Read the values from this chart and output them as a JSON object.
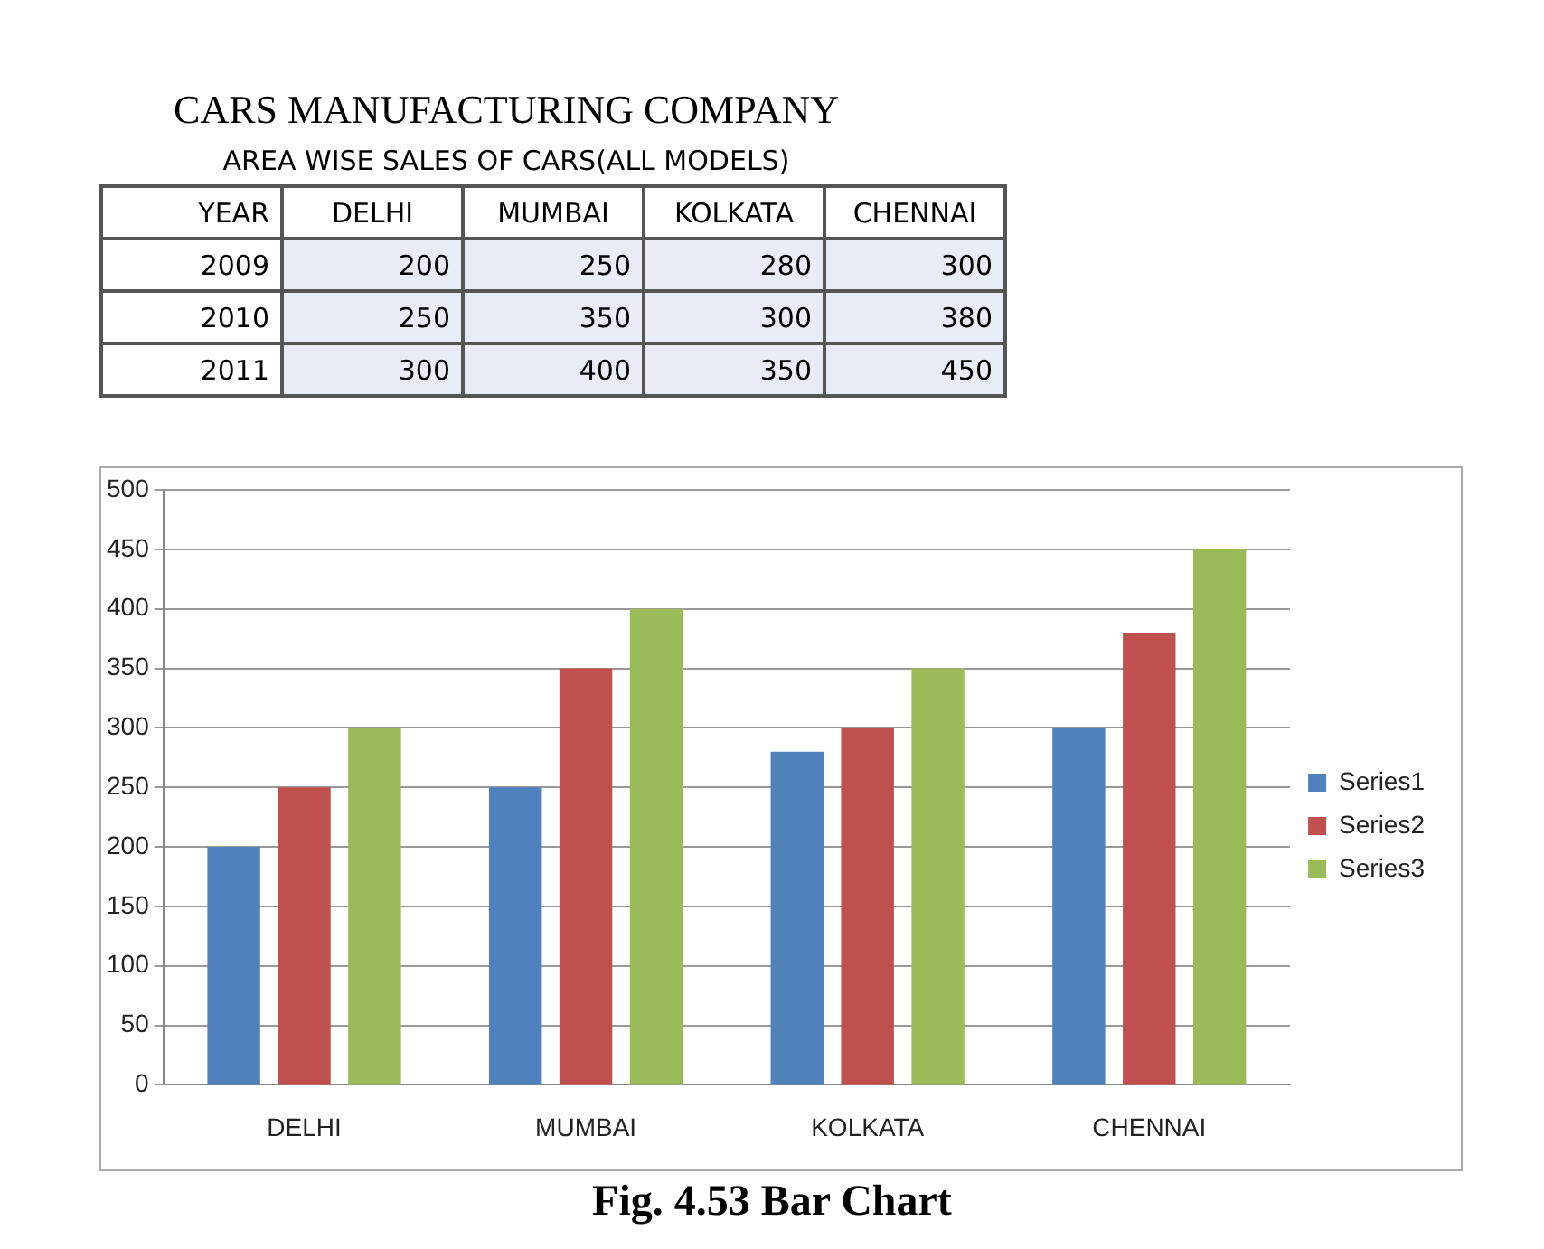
{
  "chart_data": [
    {
      "type": "heatmap",
      "subtitle": "CARS MANUFACTURING COMPANY",
      "title": "AREA  WISE SALES OF CARS(ALL MODELS)",
      "ylabel": "YEAR",
      "categories": [
        "DELHI",
        "MUMBAI",
        "KOLKATA",
        "CHENNAI"
      ],
      "y_categories": [
        "2009",
        "2010",
        "2011"
      ],
      "cells": [
        [
          200,
          250,
          280,
          300
        ],
        [
          250,
          350,
          300,
          380
        ],
        [
          300,
          400,
          350,
          450
        ]
      ],
      "data_labels": true
    },
    {
      "type": "bar",
      "categories": [
        "DELHI",
        "MUMBAI",
        "KOLKATA",
        "CHENNAI"
      ],
      "series": [
        {
          "name": "Series1",
          "color": "#4f81bd",
          "values": [
            200,
            250,
            280,
            300
          ]
        },
        {
          "name": "Series2",
          "color": "#c0504d",
          "values": [
            250,
            350,
            300,
            380
          ]
        },
        {
          "name": "Series3",
          "color": "#9bbb59",
          "values": [
            300,
            400,
            350,
            450
          ]
        }
      ],
      "ylim": [
        0,
        500
      ],
      "yticks": [
        0,
        50,
        100,
        150,
        200,
        250,
        300,
        350,
        400,
        450,
        500
      ],
      "grid": "y",
      "legend": "right",
      "annotations": [
        "Fig. 4.53 Bar Chart"
      ]
    }
  ]
}
